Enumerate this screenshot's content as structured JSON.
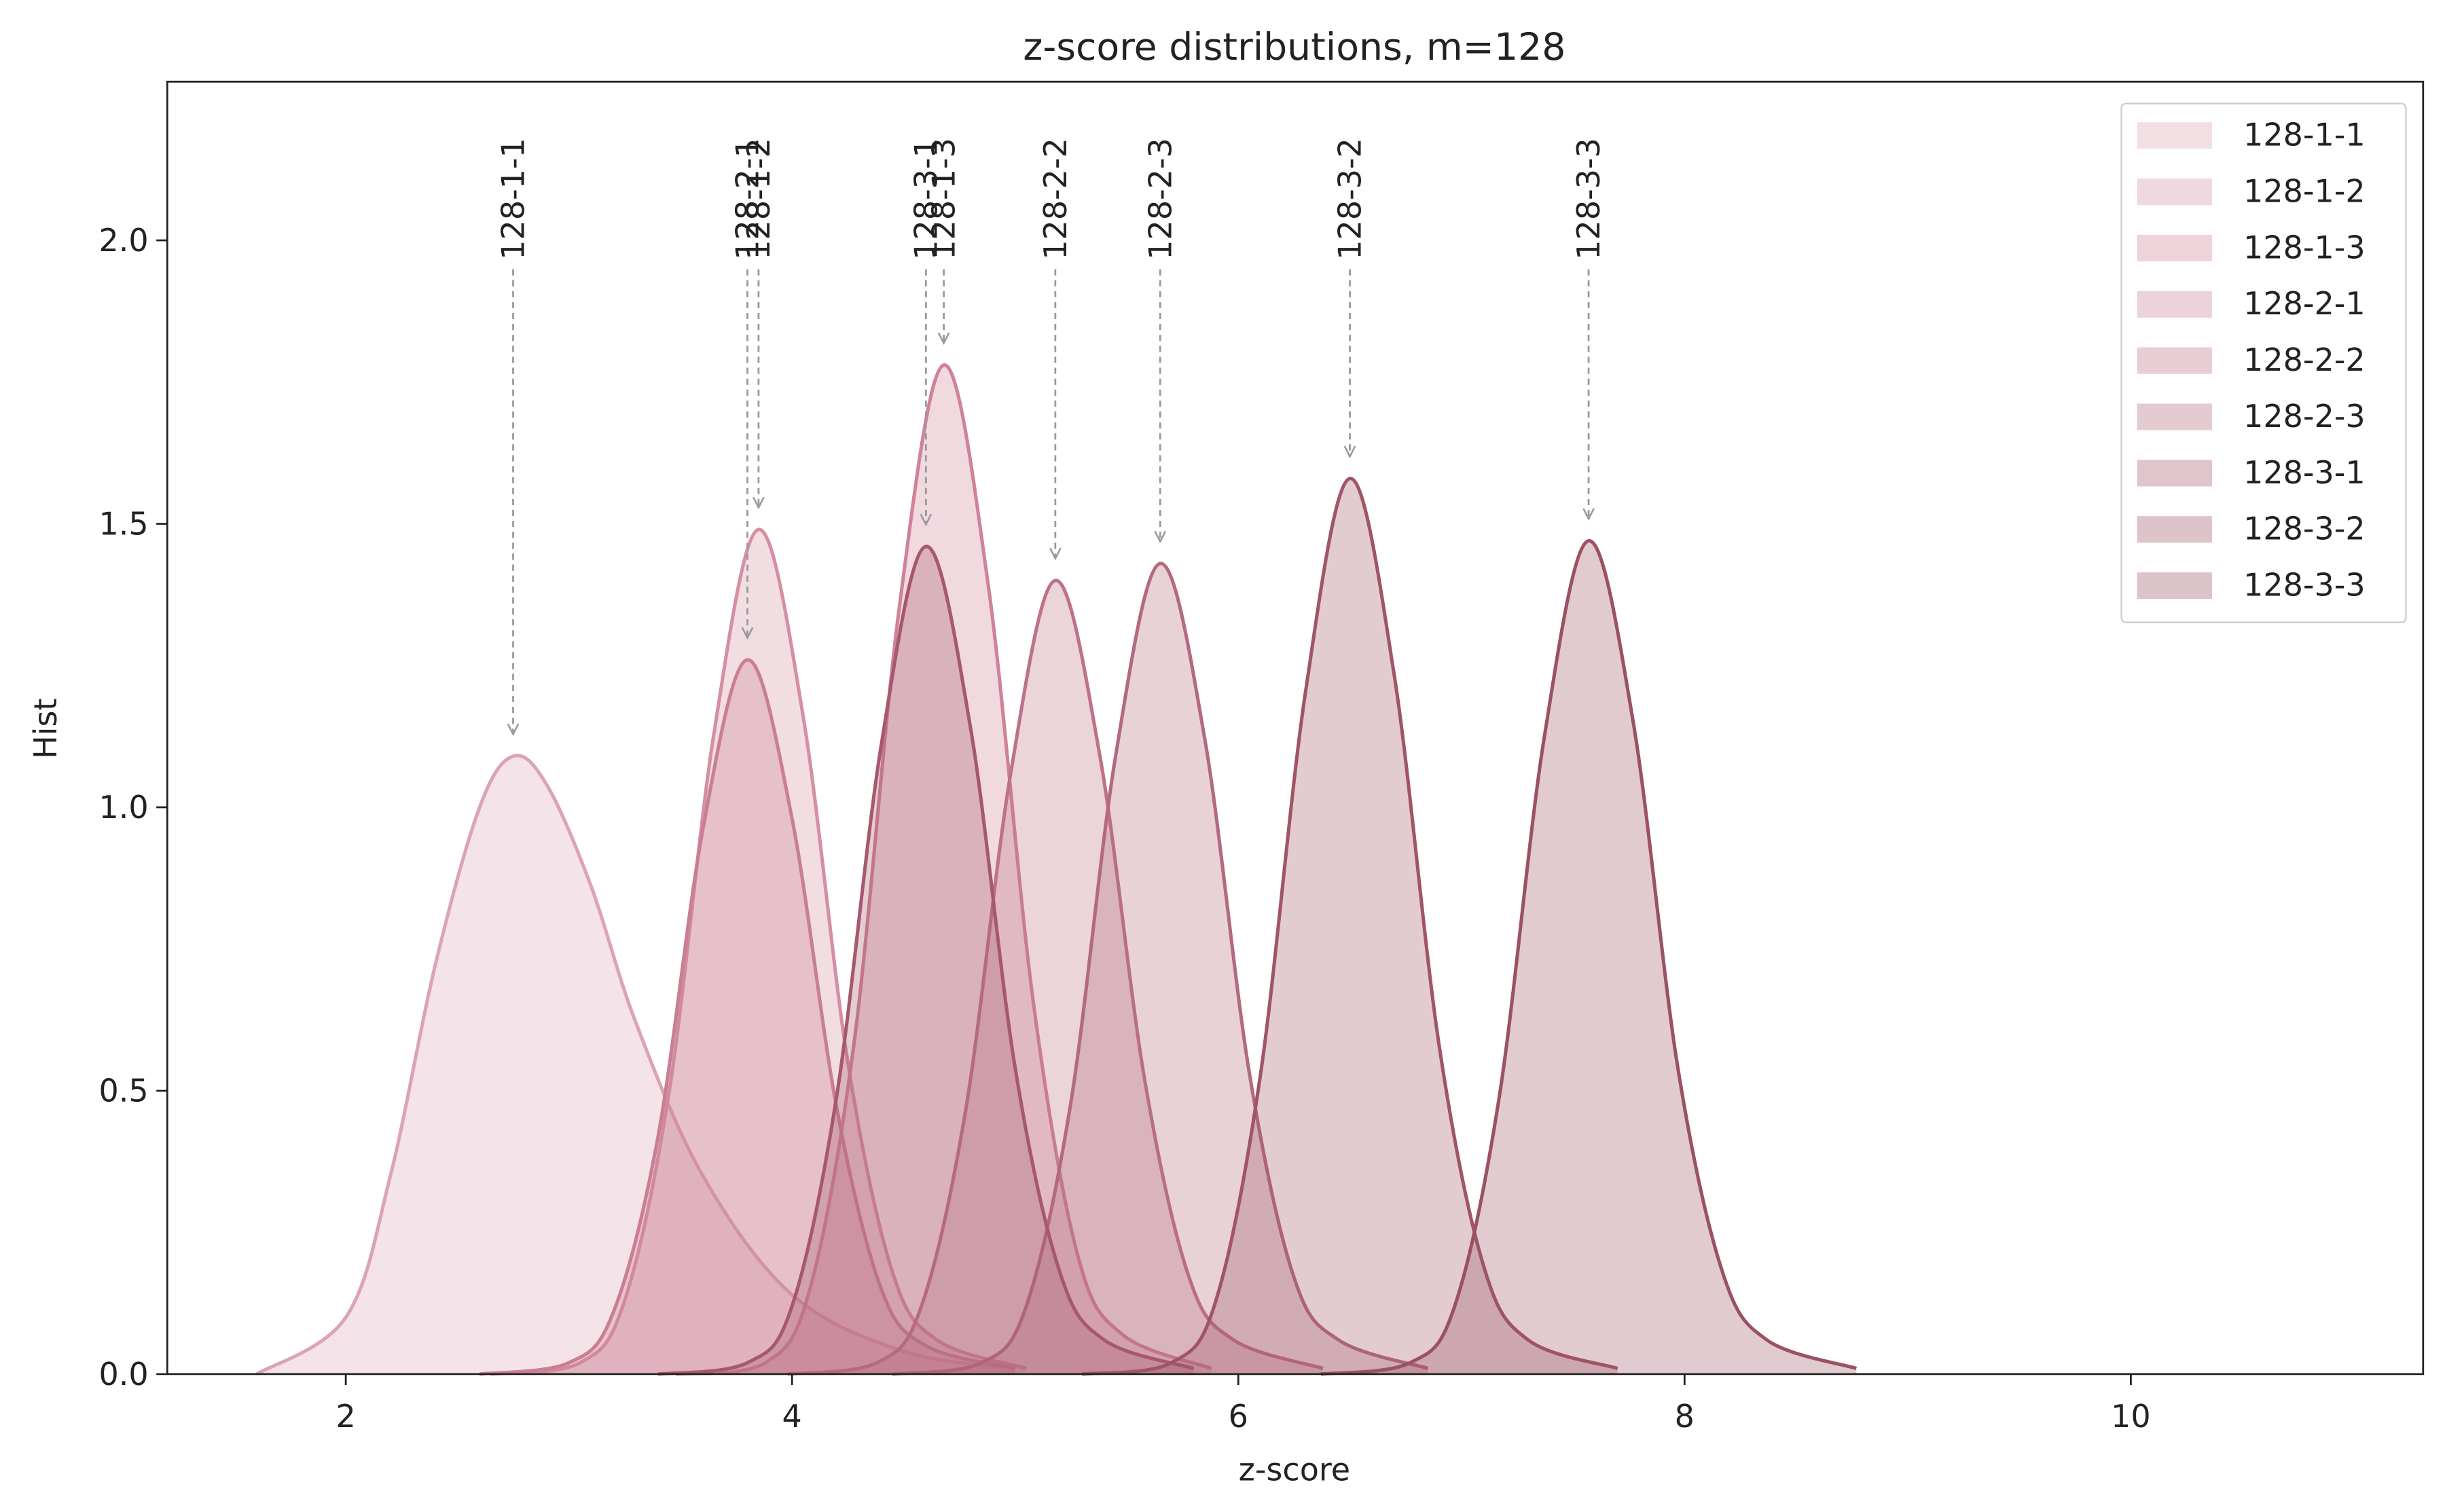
{
  "chart_data": {
    "type": "kde",
    "title": "z-score distributions, m=128",
    "x_label": "z-score",
    "y_label": "Hist",
    "xlim": [
      1.2,
      11.31
    ],
    "ylim": [
      0,
      2.28
    ],
    "xticks": [
      2,
      4,
      6,
      8,
      10
    ],
    "yticks": [
      {
        "value": 0,
        "label": "0.0"
      },
      {
        "value": 0.5,
        "label": "0.5"
      },
      {
        "value": 1,
        "label": "1.0"
      },
      {
        "value": 1.5,
        "label": "1.5"
      },
      {
        "value": 2,
        "label": "2.0"
      }
    ],
    "legend": "upper right",
    "series": [
      {
        "name": "128-1-1",
        "color": "#dba3b3",
        "x": [
          1.6,
          2.0,
          2.2,
          2.4,
          2.6,
          2.75,
          2.9,
          3.1,
          3.3,
          3.6,
          4.0,
          4.5,
          5.0
        ],
        "values": [
          0,
          0.1,
          0.35,
          0.72,
          1.0,
          1.09,
          1.04,
          0.86,
          0.62,
          0.35,
          0.14,
          0.04,
          0.01
        ]
      },
      {
        "name": "128-1-2",
        "color": "#d48fa3",
        "x": [
          2.65,
          3.05,
          3.25,
          3.45,
          3.65,
          3.85,
          4.05,
          4.25,
          4.45,
          4.65,
          5.05
        ],
        "values": [
          0,
          0.02,
          0.13,
          0.5,
          1.13,
          1.49,
          1.16,
          0.55,
          0.18,
          0.06,
          0.01
        ]
      },
      {
        "name": "128-1-3",
        "color": "#cf8298",
        "x": [
          3.48,
          3.88,
          4.08,
          4.28,
          4.48,
          4.68,
          4.88,
          5.08,
          5.28,
          5.48,
          5.88
        ],
        "values": [
          0,
          0.02,
          0.15,
          0.59,
          1.35,
          1.78,
          1.39,
          0.66,
          0.21,
          0.07,
          0.01
        ]
      },
      {
        "name": "128-2-1",
        "color": "#c97e92",
        "x": [
          2.6,
          3.0,
          3.2,
          3.4,
          3.6,
          3.8,
          4.0,
          4.2,
          4.4,
          4.6,
          5.0
        ],
        "values": [
          0,
          0.02,
          0.11,
          0.42,
          0.96,
          1.26,
          0.98,
          0.47,
          0.15,
          0.05,
          0.01
        ]
      },
      {
        "name": "128-2-2",
        "color": "#bd7285",
        "x": [
          3.98,
          4.38,
          4.58,
          4.78,
          4.98,
          5.18,
          5.38,
          5.58,
          5.78,
          5.98,
          6.38
        ],
        "values": [
          0,
          0.02,
          0.12,
          0.47,
          1.06,
          1.4,
          1.09,
          0.52,
          0.17,
          0.06,
          0.01
        ]
      },
      {
        "name": "128-2-3",
        "color": "#b36a7c",
        "x": [
          4.45,
          4.85,
          5.05,
          5.25,
          5.45,
          5.65,
          5.85,
          6.05,
          6.25,
          6.45,
          6.85
        ],
        "values": [
          0,
          0.02,
          0.12,
          0.48,
          1.09,
          1.43,
          1.12,
          0.53,
          0.17,
          0.06,
          0.01
        ]
      },
      {
        "name": "128-3-1",
        "color": "#a6586c",
        "x": [
          3.4,
          3.8,
          4.0,
          4.2,
          4.4,
          4.6,
          4.8,
          5.0,
          5.2,
          5.4,
          5.8
        ],
        "values": [
          0,
          0.02,
          0.12,
          0.49,
          1.11,
          1.46,
          1.14,
          0.54,
          0.18,
          0.06,
          0.01
        ]
      },
      {
        "name": "128-3-2",
        "color": "#a05566",
        "x": [
          5.3,
          5.7,
          5.9,
          6.1,
          6.3,
          6.5,
          6.7,
          6.9,
          7.1,
          7.3,
          7.7
        ],
        "values": [
          0,
          0.02,
          0.13,
          0.53,
          1.2,
          1.58,
          1.23,
          0.58,
          0.19,
          0.06,
          0.01
        ]
      },
      {
        "name": "128-3-3",
        "color": "#9a5262",
        "x": [
          6.37,
          6.77,
          6.97,
          7.17,
          7.37,
          7.57,
          7.77,
          7.97,
          8.17,
          8.37,
          8.77
        ],
        "values": [
          0,
          0.02,
          0.12,
          0.49,
          1.12,
          1.47,
          1.15,
          0.54,
          0.18,
          0.06,
          0.01
        ]
      }
    ]
  }
}
